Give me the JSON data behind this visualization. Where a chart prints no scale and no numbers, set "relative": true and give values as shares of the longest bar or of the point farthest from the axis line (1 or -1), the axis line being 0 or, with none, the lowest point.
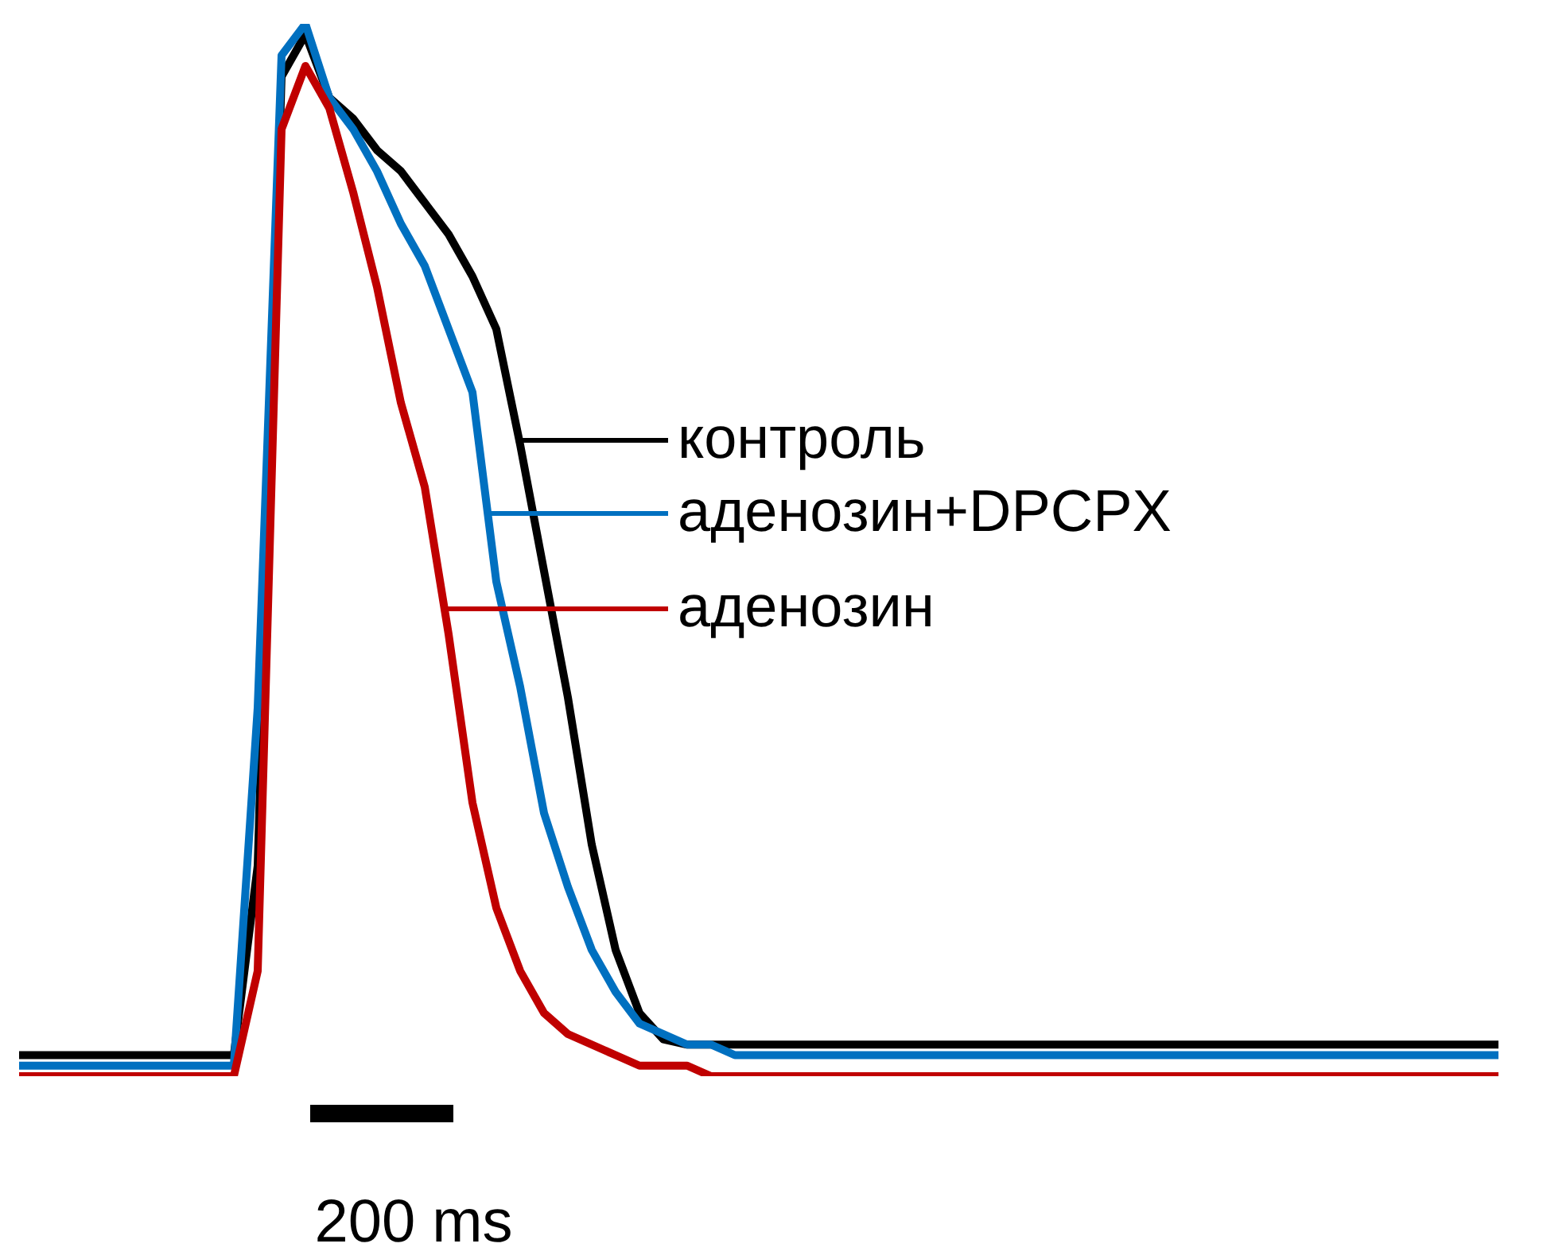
{
  "chart_data": {
    "type": "line",
    "relative": true,
    "legend": "right",
    "line_style": "solid",
    "annotations": [
      "200 ms"
    ],
    "categories": [
      null,
      null,
      null,
      null,
      null,
      null,
      null,
      null,
      null,
      null,
      null,
      null,
      null,
      null,
      null,
      null,
      null,
      null,
      null,
      null,
      null,
      null,
      null,
      null,
      null,
      null,
      null,
      null,
      null,
      null,
      null,
      null,
      null,
      null,
      null,
      null,
      null,
      null,
      null,
      null,
      null,
      null,
      null,
      null,
      null,
      null,
      null,
      null,
      null,
      null,
      null,
      null,
      null,
      null,
      null,
      null,
      null,
      null,
      null,
      null,
      null,
      null,
      null
    ],
    "series": [
      {
        "name": "контроль",
        "color": "#000000",
        "values": [
          0.02,
          0.02,
          0.02,
          0.02,
          0.02,
          0.02,
          0.02,
          0.02,
          0.02,
          0.02,
          0.2,
          0.95,
          0.99,
          0.93,
          0.91,
          0.88,
          0.86,
          0.83,
          0.8,
          0.76,
          0.71,
          0.6,
          0.48,
          0.36,
          0.22,
          0.12,
          0.06,
          0.035,
          0.03,
          0.03,
          0.03,
          0.03,
          0.03,
          0.03,
          0.03,
          0.03,
          0.03,
          0.03,
          0.03,
          0.03,
          0.03,
          0.03,
          0.03,
          0.03,
          0.03,
          0.03,
          0.03,
          0.03,
          0.03,
          0.03,
          0.03,
          0.03,
          0.03,
          0.03,
          0.03,
          0.03,
          0.03,
          0.03,
          0.03,
          0.03,
          0.03,
          0.03,
          0.03
        ]
      },
      {
        "name": "аденозин+DPCPX",
        "color": "#0070c0",
        "values": [
          0.01,
          0.01,
          0.01,
          0.01,
          0.01,
          0.01,
          0.01,
          0.01,
          0.01,
          0.01,
          0.35,
          0.97,
          1,
          0.93,
          0.9,
          0.86,
          0.81,
          0.77,
          0.71,
          0.65,
          0.47,
          0.37,
          0.25,
          0.18,
          0.12,
          0.08,
          0.05,
          0.04,
          0.03,
          0.03,
          0.02,
          0.02,
          0.02,
          0.02,
          0.02,
          0.02,
          0.02,
          0.02,
          0.02,
          0.02,
          0.02,
          0.02,
          0.02,
          0.02,
          0.02,
          0.02,
          0.02,
          0.02,
          0.02,
          0.02,
          0.02,
          0.02,
          0.02,
          0.02,
          0.02,
          0.02,
          0.02,
          0.02,
          0.02,
          0.02,
          0.02,
          0.02,
          0.02
        ]
      },
      {
        "name": "аденозин",
        "color": "#c00000",
        "values": [
          0,
          0,
          0,
          0,
          0,
          0,
          0,
          0,
          0,
          0,
          0.1,
          0.9,
          0.96,
          0.92,
          0.84,
          0.75,
          0.64,
          0.56,
          0.42,
          0.26,
          0.16,
          0.1,
          0.06,
          0.04,
          0.03,
          0.02,
          0.01,
          0.01,
          0.01,
          0,
          0,
          0,
          0,
          0,
          0,
          0,
          0,
          0,
          0,
          0,
          0,
          0,
          0,
          0,
          0,
          0,
          0,
          0,
          0,
          0,
          0,
          0,
          0,
          0,
          0,
          0,
          0,
          0,
          0,
          0,
          0,
          0,
          0
        ]
      }
    ]
  }
}
